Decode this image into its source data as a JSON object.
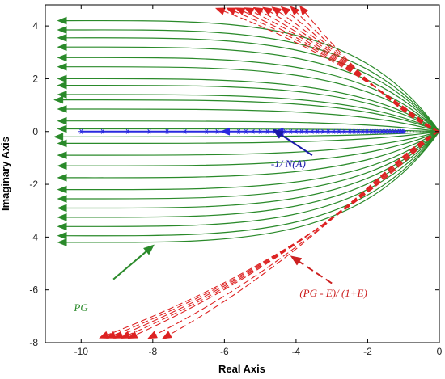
{
  "chart_data": {
    "type": "line",
    "title": "",
    "xlabel": "Real Axis",
    "ylabel": "Imaginary Axis",
    "xlim": [
      -11,
      0
    ],
    "ylim": [
      -8,
      4.8
    ],
    "xticks": [
      -10,
      -8,
      -6,
      -4,
      -2,
      0
    ],
    "yticks": [
      -8,
      -6,
      -4,
      -2,
      0,
      2,
      4
    ],
    "grid": false,
    "legend": "none",
    "series": [
      {
        "key": "pg",
        "color": "#2a8a2a",
        "style": "solid",
        "markers": "filled-triangle-arrows",
        "endpoints": [
          {
            "x": -10.5,
            "y": 4.2
          },
          {
            "x": -10.5,
            "y": 3.85
          },
          {
            "x": -10.5,
            "y": 3.55
          },
          {
            "x": -10.5,
            "y": 3.2
          },
          {
            "x": -10.5,
            "y": 2.8
          },
          {
            "x": -10.5,
            "y": 2.45
          },
          {
            "x": -10.5,
            "y": 2.0
          },
          {
            "x": -10.5,
            "y": 1.75
          },
          {
            "x": -10.5,
            "y": 1.4
          },
          {
            "x": -10.6,
            "y": 1.2
          },
          {
            "x": -10.5,
            "y": 0.85
          },
          {
            "x": -10.5,
            "y": 0.4
          },
          {
            "x": -10.5,
            "y": 0.1
          },
          {
            "x": -10.6,
            "y": -0.2
          },
          {
            "x": -10.5,
            "y": -0.45
          },
          {
            "x": -10.5,
            "y": -0.9
          },
          {
            "x": -10.5,
            "y": -1.3
          },
          {
            "x": -10.5,
            "y": -1.75
          },
          {
            "x": -10.5,
            "y": -2.2
          },
          {
            "x": -10.5,
            "y": -2.55
          },
          {
            "x": -10.5,
            "y": -2.9
          },
          {
            "x": -10.5,
            "y": -3.25
          },
          {
            "x": -10.5,
            "y": -3.6
          },
          {
            "x": -10.5,
            "y": -3.95
          },
          {
            "x": -10.5,
            "y": -4.2
          }
        ]
      },
      {
        "key": "nyquist-ratio",
        "color": "#dd2222",
        "style": "dashed",
        "markers": "filled-triangle-arrows",
        "top_endpoints": [
          {
            "x": -6.1,
            "y": 4.6
          },
          {
            "x": -5.8,
            "y": 4.6
          },
          {
            "x": -5.55,
            "y": 4.6
          },
          {
            "x": -5.3,
            "y": 4.6
          },
          {
            "x": -5.05,
            "y": 4.6
          },
          {
            "x": -4.8,
            "y": 4.6
          },
          {
            "x": -4.55,
            "y": 4.6
          },
          {
            "x": -4.3,
            "y": 4.6
          },
          {
            "x": -4.05,
            "y": 4.6
          },
          {
            "x": -3.8,
            "y": 4.6
          }
        ],
        "bottom_endpoints": [
          {
            "x": -9.35,
            "y": -7.75
          },
          {
            "x": -9.15,
            "y": -7.75
          },
          {
            "x": -8.95,
            "y": -7.75
          },
          {
            "x": -8.75,
            "y": -7.75
          },
          {
            "x": -8.55,
            "y": -7.75
          },
          {
            "x": -8.0,
            "y": -7.75
          },
          {
            "x": -7.6,
            "y": -7.75
          }
        ]
      },
      {
        "key": "describing-function",
        "color": "#2a2adf",
        "style": "solid",
        "markers": "asterisk",
        "y": 0,
        "x": [
          -10.0,
          -9.4,
          -8.7,
          -8.1,
          -7.6,
          -7.1,
          -6.5,
          -6.2,
          -5.9,
          -5.6,
          -5.4,
          -5.2,
          -5.0,
          -4.8,
          -4.6,
          -4.45,
          -4.3,
          -4.15,
          -4.0,
          -3.85,
          -3.7,
          -3.55,
          -3.4,
          -3.25,
          -3.1,
          -2.95,
          -2.8,
          -2.65,
          -2.5,
          -2.38,
          -2.26,
          -2.14,
          -2.02,
          -1.9,
          -1.8,
          -1.7,
          -1.6,
          -1.5,
          -1.42,
          -1.34,
          -1.26,
          -1.18,
          -1.1,
          -1.04,
          -1.0
        ]
      }
    ],
    "annotations": [
      {
        "key": "pg",
        "text": "PG",
        "color": "#2a8a2a",
        "anchor": {
          "x": -10.2,
          "y": -6.8
        },
        "arrow_from": {
          "x": -9.1,
          "y": -5.6
        },
        "arrow_to": {
          "x": -8.1,
          "y": -4.45
        }
      },
      {
        "key": "nf",
        "text": "-1/ N(A)",
        "color": "#1a1aa8",
        "anchor": {
          "x": -4.7,
          "y": -1.35
        },
        "arrow_from": {
          "x": -3.55,
          "y": -0.9
        },
        "arrow_to": {
          "x": -4.5,
          "y": -0.05
        }
      },
      {
        "key": "ratio",
        "text": "(PG - E)/ (1+E)",
        "color": "#cc2020",
        "anchor": {
          "x": -3.9,
          "y": -6.25
        },
        "arrow_from": {
          "x": -3.0,
          "y": -5.75
        },
        "arrow_to": {
          "x": -4.0,
          "y": -4.85
        }
      }
    ]
  }
}
